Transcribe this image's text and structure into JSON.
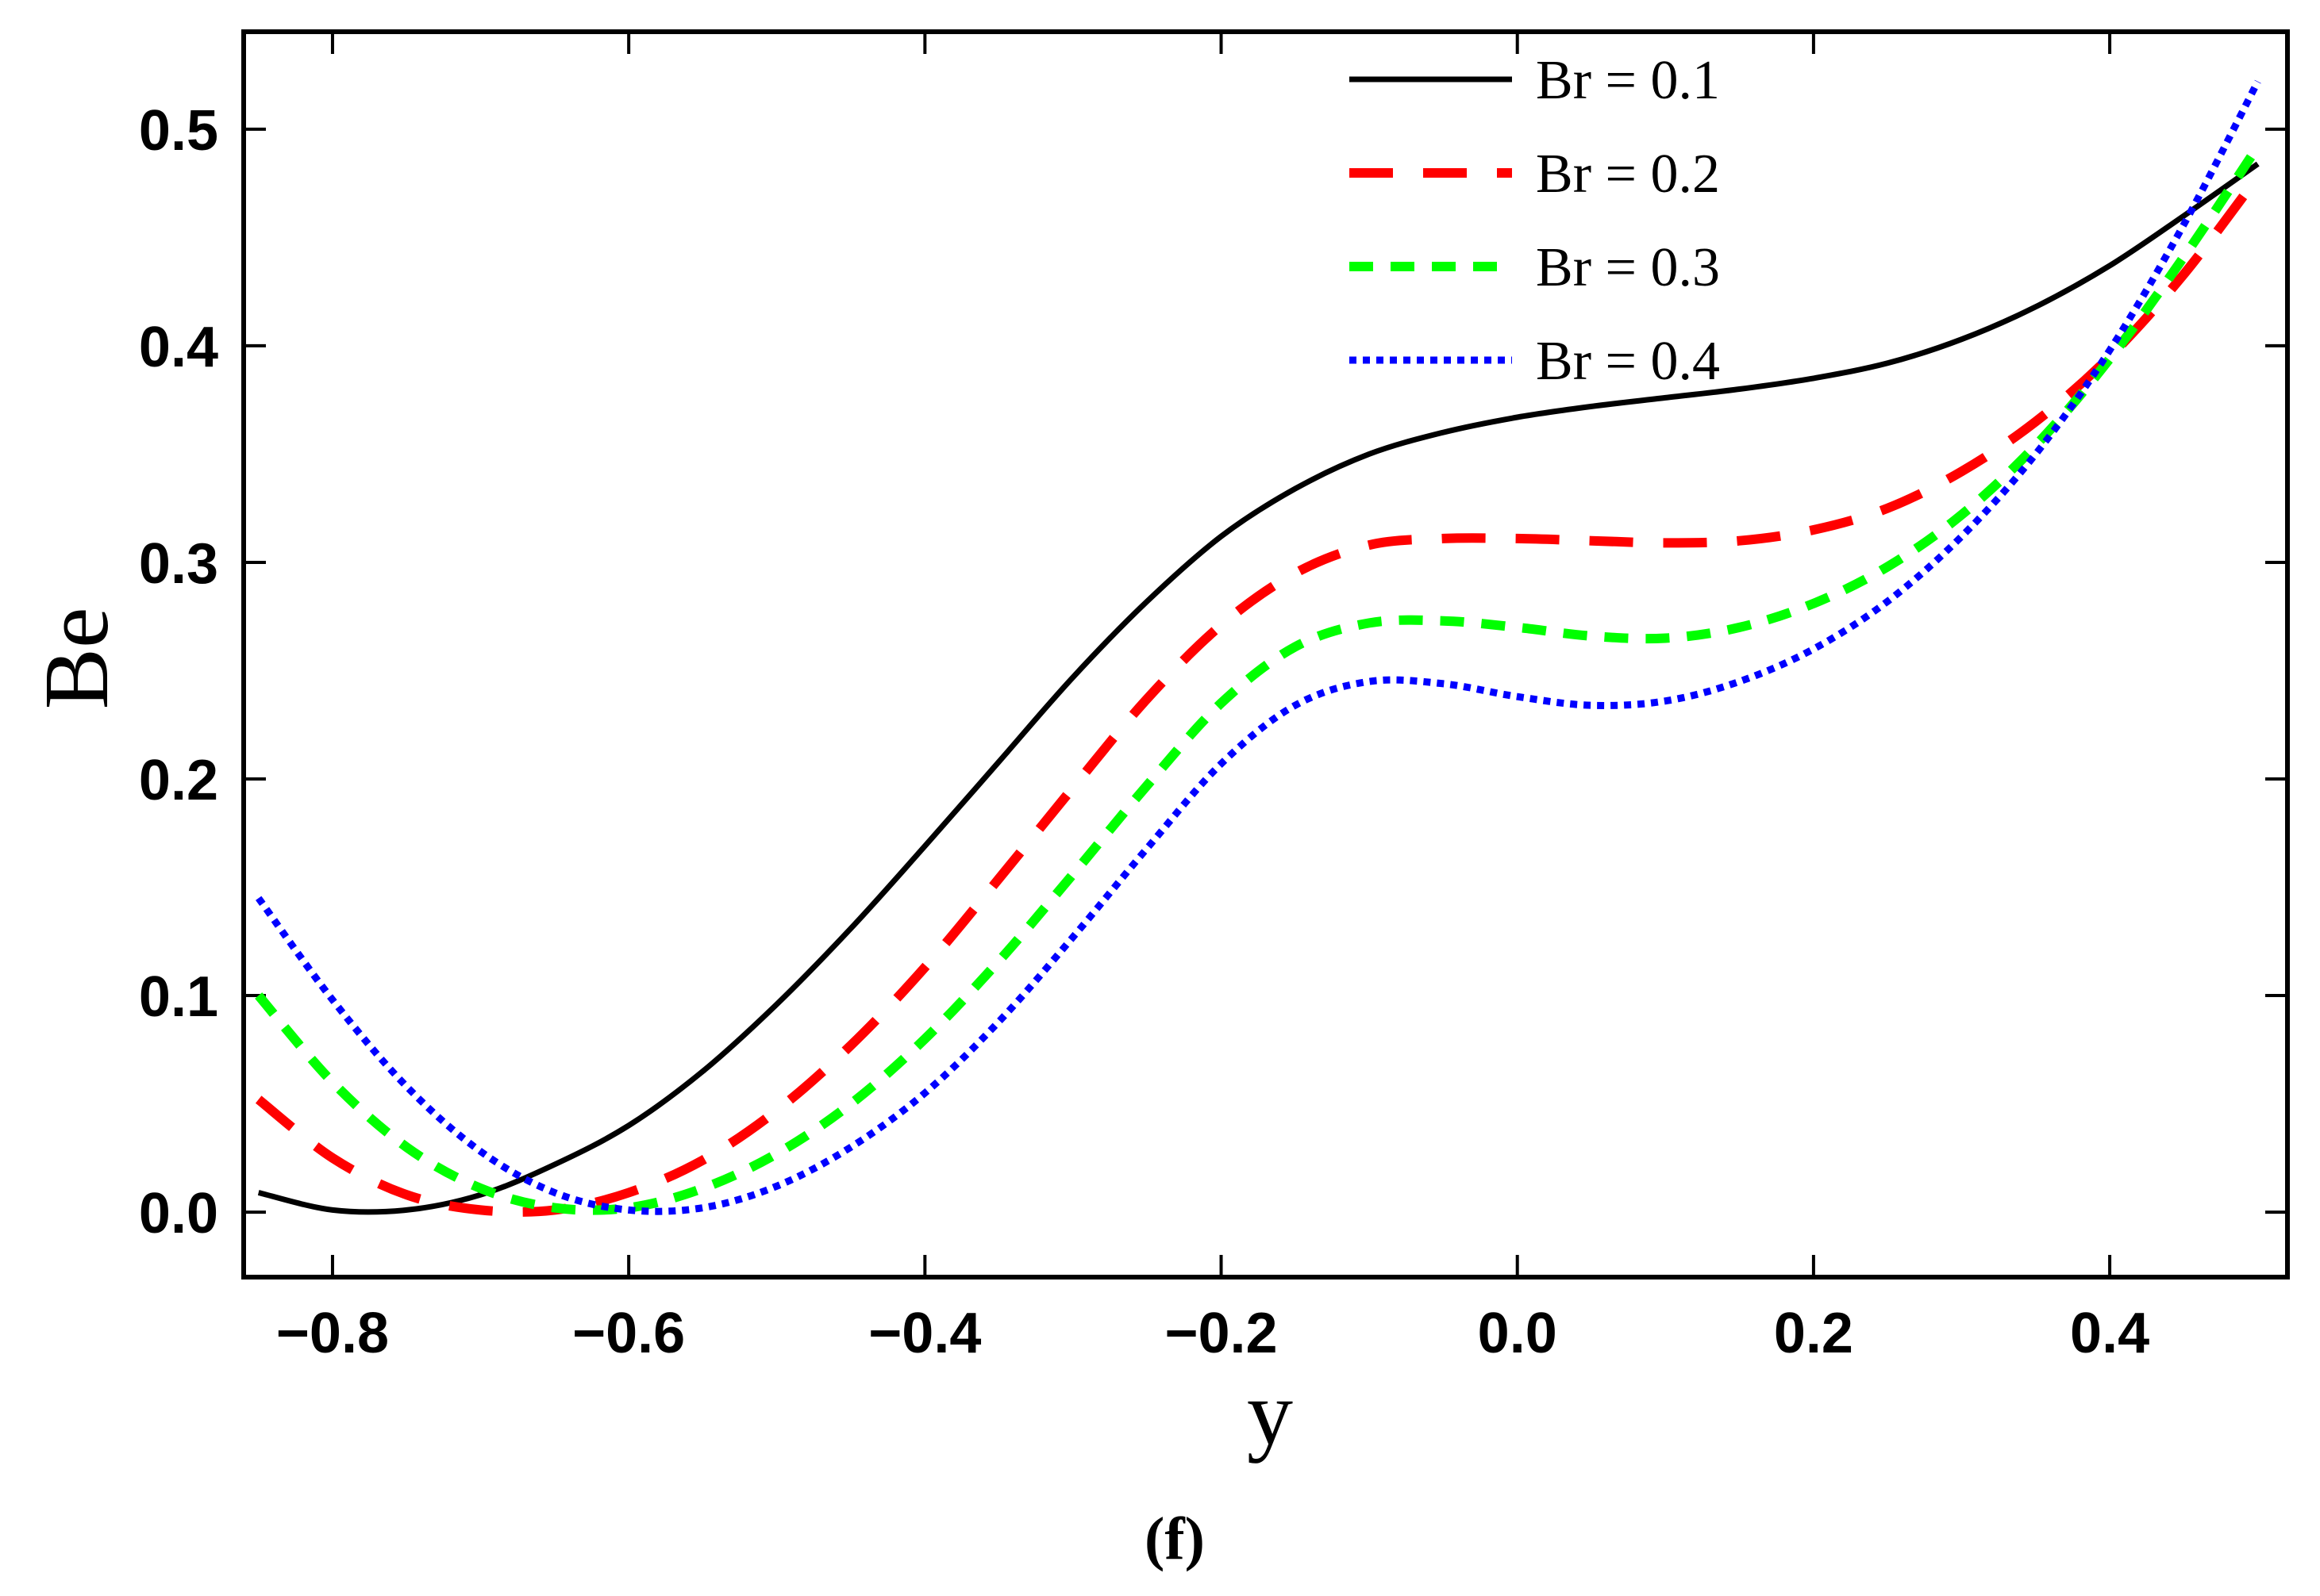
{
  "chart_data": {
    "type": "line",
    "title": "",
    "xlabel": "y",
    "ylabel": "Be",
    "xlim": [
      -0.86,
      0.52
    ],
    "ylim": [
      -0.03,
      0.545
    ],
    "xticks": [
      -0.8,
      -0.6,
      -0.4,
      -0.2,
      0.0,
      0.2,
      0.4
    ],
    "xtick_labels": [
      "−0.8",
      "−0.6",
      "−0.4",
      "−0.2",
      "0.0",
      "0.2",
      "0.4"
    ],
    "yticks": [
      0.0,
      0.1,
      0.2,
      0.3,
      0.4,
      0.5
    ],
    "ytick_labels": [
      "0.0",
      "0.1",
      "0.2",
      "0.3",
      "0.4",
      "0.5"
    ],
    "grid": false,
    "legend_position": "top-right",
    "caption": "(f)",
    "series": [
      {
        "name": "Br = 0.1",
        "color": "#000000",
        "style": "solid",
        "x": [
          -0.85,
          -0.8,
          -0.75,
          -0.7,
          -0.65,
          -0.6,
          -0.55,
          -0.5,
          -0.45,
          -0.4,
          -0.35,
          -0.3,
          -0.25,
          -0.2,
          -0.15,
          -0.1,
          -0.05,
          0.0,
          0.05,
          0.1,
          0.15,
          0.2,
          0.25,
          0.3,
          0.35,
          0.4,
          0.45,
          0.5
        ],
        "y": [
          0.009,
          0.001,
          0.001,
          0.008,
          0.022,
          0.04,
          0.065,
          0.096,
          0.131,
          0.169,
          0.208,
          0.247,
          0.282,
          0.312,
          0.334,
          0.35,
          0.36,
          0.367,
          0.372,
          0.376,
          0.38,
          0.385,
          0.392,
          0.403,
          0.418,
          0.437,
          0.46,
          0.484
        ]
      },
      {
        "name": "Br = 0.2",
        "color": "#ff0000",
        "style": "dashed",
        "x": [
          -0.85,
          -0.8,
          -0.75,
          -0.7,
          -0.65,
          -0.6,
          -0.55,
          -0.5,
          -0.45,
          -0.4,
          -0.35,
          -0.3,
          -0.25,
          -0.2,
          -0.15,
          -0.1,
          -0.05,
          0.0,
          0.05,
          0.1,
          0.15,
          0.2,
          0.25,
          0.3,
          0.35,
          0.4,
          0.45,
          0.5
        ],
        "y": [
          0.052,
          0.025,
          0.008,
          0.001,
          0.001,
          0.009,
          0.024,
          0.047,
          0.077,
          0.113,
          0.154,
          0.196,
          0.237,
          0.271,
          0.295,
          0.308,
          0.311,
          0.311,
          0.31,
          0.309,
          0.31,
          0.315,
          0.325,
          0.342,
          0.365,
          0.395,
          0.433,
          0.478
        ]
      },
      {
        "name": "Br = 0.3",
        "color": "#00ff00",
        "style": "dashed",
        "x": [
          -0.85,
          -0.8,
          -0.75,
          -0.7,
          -0.65,
          -0.6,
          -0.55,
          -0.5,
          -0.45,
          -0.4,
          -0.35,
          -0.3,
          -0.25,
          -0.2,
          -0.15,
          -0.1,
          -0.05,
          0.0,
          0.05,
          0.1,
          0.15,
          0.2,
          0.25,
          0.3,
          0.35,
          0.4,
          0.45,
          0.5
        ],
        "y": [
          0.1,
          0.06,
          0.03,
          0.011,
          0.002,
          0.002,
          0.011,
          0.027,
          0.05,
          0.08,
          0.116,
          0.156,
          0.197,
          0.235,
          0.261,
          0.272,
          0.273,
          0.27,
          0.266,
          0.265,
          0.27,
          0.281,
          0.298,
          0.322,
          0.354,
          0.394,
          0.441,
          0.492
        ]
      },
      {
        "name": "Br = 0.4",
        "color": "#0000ff",
        "style": "dotted",
        "x": [
          -0.85,
          -0.8,
          -0.75,
          -0.7,
          -0.65,
          -0.6,
          -0.55,
          -0.5,
          -0.45,
          -0.4,
          -0.35,
          -0.3,
          -0.25,
          -0.2,
          -0.15,
          -0.1,
          -0.05,
          0.0,
          0.05,
          0.1,
          0.15,
          0.2,
          0.25,
          0.3,
          0.35,
          0.4,
          0.45,
          0.5
        ],
        "y": [
          0.145,
          0.098,
          0.058,
          0.028,
          0.009,
          0.001,
          0.002,
          0.012,
          0.03,
          0.055,
          0.088,
          0.127,
          0.168,
          0.207,
          0.234,
          0.245,
          0.244,
          0.238,
          0.234,
          0.236,
          0.245,
          0.26,
          0.282,
          0.312,
          0.35,
          0.398,
          0.456,
          0.522
        ]
      }
    ]
  }
}
